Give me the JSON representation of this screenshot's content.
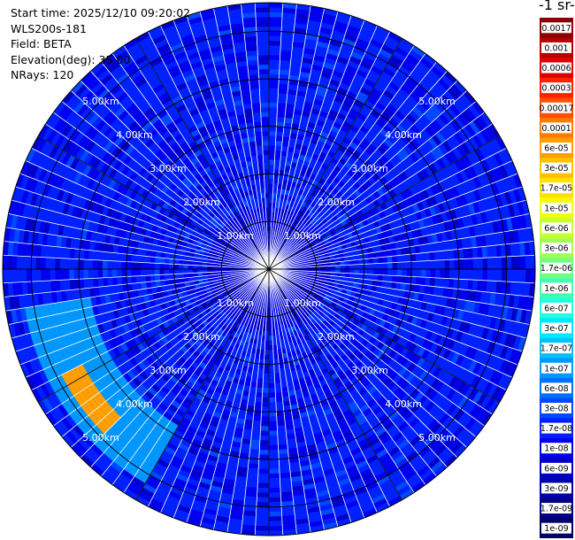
{
  "info": {
    "start_time": "Start time: 2025/12/10 09:20:02",
    "instrument": "WLS200s-181",
    "field": "Field: BETA",
    "elevation": "Elevation(deg): 35.00",
    "nrays": "NRays: 120"
  },
  "colorbar": {
    "title": "-1 sr-",
    "levels": [
      "0.0017",
      "0.001",
      "0.0006",
      "0.0003",
      "0.00017",
      "0.0001",
      "6e-05",
      "3e-05",
      "1.7e-05",
      "1e-05",
      "6e-06",
      "3e-06",
      "1.7e-06",
      "1e-06",
      "6e-07",
      "3e-07",
      "1.7e-07",
      "1e-07",
      "6e-08",
      "3e-08",
      "1.7e-08",
      "1e-08",
      "6e-09",
      "3e-09",
      "1.7e-09",
      "1e-09"
    ],
    "colors": [
      "#8b0000",
      "#b80000",
      "#e00000",
      "#ff2000",
      "#ff5000",
      "#ff7a00",
      "#ffa000",
      "#ffc000",
      "#ffe000",
      "#f0ff10",
      "#c8ff30",
      "#a0ff50",
      "#70ff80",
      "#40ffb0",
      "#20ffe0",
      "#00e8ff",
      "#00c0ff",
      "#0098ff",
      "#0070ff",
      "#0048ff",
      "#0020ff",
      "#0000ee",
      "#0000c8",
      "#0000a8",
      "#000088",
      "#000066"
    ]
  },
  "chart_data": {
    "type": "heatmap",
    "projection": "polar-ppi",
    "field": "BETA",
    "elevation_deg": 35.0,
    "nrays": 120,
    "range_max_km": 5.6,
    "range_ring_labels": [
      {
        "range_km": 1,
        "label": "1.00km"
      },
      {
        "range_km": 2,
        "label": "2.00km"
      },
      {
        "range_km": 3,
        "label": "3.00km"
      },
      {
        "range_km": 4,
        "label": "4.00km"
      },
      {
        "range_km": 5,
        "label": "5.00km"
      }
    ],
    "label_bearings_deg": [
      -45,
      45,
      135,
      225
    ],
    "azimuth_spokes_deg": [
      0,
      30,
      60,
      90,
      120,
      150,
      180,
      210,
      240,
      270,
      300,
      330
    ],
    "background_value": "3e-08",
    "features": [
      {
        "description": "enhanced backscatter arc",
        "azimuth_deg": [
          210,
          262
        ],
        "range_km": [
          3.8,
          5.2
        ],
        "value": "1e-07"
      },
      {
        "description": "peak backscatter",
        "azimuth_deg": [
          226,
          244
        ],
        "range_km": [
          4.4,
          4.9
        ],
        "value": "6e-05"
      }
    ]
  }
}
